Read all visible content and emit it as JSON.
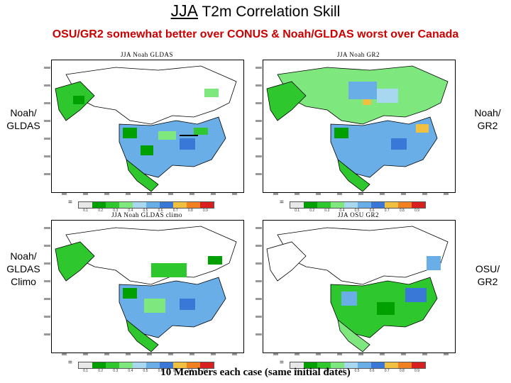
{
  "title": {
    "prefix": "JJA",
    "rest": " T2m Correlation Skill"
  },
  "subtitle": "OSU/GR2 somewhat better over CONUS & Noah/GLDAS worst over Canada",
  "footer": "10 Members each case (same initial dates)",
  "side_labels": {
    "top_left": "Noah/ GLDAS",
    "top_right": "Noah/ GR2",
    "bottom_left": "Noah/ GLDAS Climo",
    "bottom_right": "OSU/ GR2"
  },
  "panels": [
    {
      "title": "JJA Noah GLDAS"
    },
    {
      "title": "JJA Noah GR2"
    },
    {
      "title": "JJA Noah GLDAS climo"
    },
    {
      "title": "JJA OSU GR2"
    }
  ],
  "colorbar": {
    "colors": [
      "#e8e8e8",
      "#00a000",
      "#2ec82e",
      "#7ee87e",
      "#a8d8f0",
      "#6aaee8",
      "#3a78d8",
      "#f0c040",
      "#f08020",
      "#d82020"
    ],
    "labels": [
      "0.1",
      "0.2",
      "0.3",
      "0.4",
      "0.5",
      "0.6",
      "0.7",
      "0.8",
      "0.9"
    ]
  },
  "colors": {
    "subtitle": "#cc0000",
    "ocean": "#ffffff"
  }
}
